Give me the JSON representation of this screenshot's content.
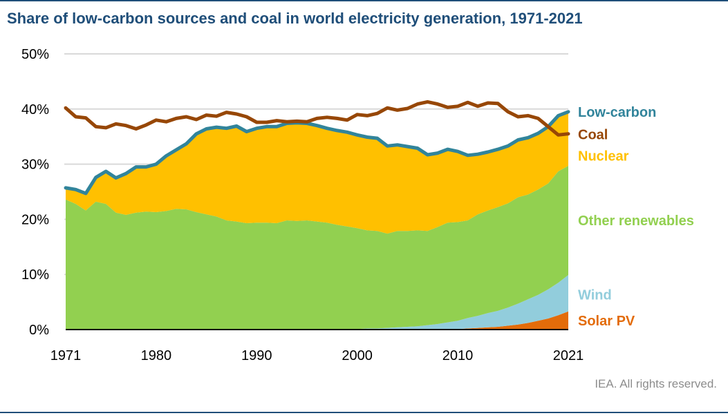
{
  "title": "Share of low-carbon sources and coal in world electricity generation, 1971-2021",
  "credit": "IEA. All rights reserved.",
  "chart_data": {
    "type": "area",
    "title": "Share of low-carbon sources and coal in world electricity generation, 1971-2021",
    "xlabel": "",
    "ylabel": "",
    "xlim": [
      1971,
      2021
    ],
    "ylim": [
      0,
      50
    ],
    "x_ticks": [
      1971,
      1980,
      1990,
      2000,
      2010,
      2021
    ],
    "y_ticks": [
      0,
      10,
      20,
      30,
      40,
      50
    ],
    "y_tick_labels": [
      "0%",
      "10%",
      "20%",
      "30%",
      "40%",
      "50%"
    ],
    "grid": "horizontal",
    "years": [
      1971,
      1972,
      1973,
      1974,
      1975,
      1976,
      1977,
      1978,
      1979,
      1980,
      1981,
      1982,
      1983,
      1984,
      1985,
      1986,
      1987,
      1988,
      1989,
      1990,
      1991,
      1992,
      1993,
      1994,
      1995,
      1996,
      1997,
      1998,
      1999,
      2000,
      2001,
      2002,
      2003,
      2004,
      2005,
      2006,
      2007,
      2008,
      2009,
      2010,
      2011,
      2012,
      2013,
      2014,
      2015,
      2016,
      2017,
      2018,
      2019,
      2020,
      2021
    ],
    "series": [
      {
        "name": "Solar PV",
        "kind": "stacked-area",
        "color": "#e36c0a",
        "values": [
          0,
          0,
          0,
          0,
          0,
          0,
          0,
          0,
          0,
          0,
          0,
          0,
          0,
          0,
          0,
          0,
          0,
          0,
          0,
          0,
          0,
          0,
          0,
          0,
          0,
          0,
          0,
          0,
          0,
          0,
          0,
          0,
          0,
          0,
          0,
          0,
          0,
          0,
          0,
          0.1,
          0.2,
          0.3,
          0.4,
          0.5,
          0.7,
          0.9,
          1.2,
          1.6,
          2.0,
          2.6,
          3.3
        ]
      },
      {
        "name": "Wind",
        "kind": "stacked-area",
        "color": "#92cddc",
        "values": [
          0,
          0,
          0,
          0,
          0,
          0,
          0,
          0,
          0,
          0,
          0,
          0,
          0,
          0,
          0,
          0,
          0,
          0,
          0,
          0,
          0,
          0,
          0,
          0,
          0,
          0,
          0,
          0,
          0.1,
          0.1,
          0.2,
          0.2,
          0.3,
          0.4,
          0.5,
          0.6,
          0.8,
          1.0,
          1.3,
          1.5,
          1.9,
          2.2,
          2.6,
          2.9,
          3.3,
          3.8,
          4.3,
          4.7,
          5.3,
          5.9,
          6.6
        ]
      },
      {
        "name": "Other renewables",
        "kind": "stacked-area",
        "color": "#92d050",
        "values": [
          23.6,
          22.8,
          21.6,
          23.2,
          22.8,
          21.2,
          20.8,
          21.2,
          21.4,
          21.3,
          21.5,
          21.9,
          21.8,
          21.3,
          20.9,
          20.5,
          19.8,
          19.6,
          19.3,
          19.4,
          19.4,
          19.3,
          19.8,
          19.7,
          19.8,
          19.6,
          19.4,
          19.0,
          18.6,
          18.3,
          17.8,
          17.7,
          17.1,
          17.5,
          17.4,
          17.4,
          17.1,
          17.6,
          18.1,
          17.9,
          17.7,
          18.4,
          18.6,
          18.8,
          18.9,
          19.3,
          19.0,
          19.1,
          19.2,
          20.2,
          19.8
        ]
      },
      {
        "name": "Nuclear",
        "kind": "stacked-area",
        "color": "#ffc000",
        "values": [
          2.1,
          2.6,
          3.1,
          4.4,
          5.9,
          6.3,
          7.5,
          8.3,
          8.1,
          8.7,
          10.0,
          10.7,
          11.9,
          14.2,
          15.5,
          16.2,
          16.7,
          17.3,
          16.6,
          17.1,
          17.4,
          17.5,
          17.6,
          17.8,
          17.6,
          17.4,
          17.1,
          17.1,
          17.1,
          16.9,
          16.9,
          16.8,
          15.9,
          15.6,
          15.3,
          14.9,
          13.8,
          13.4,
          13.3,
          12.8,
          11.8,
          10.9,
          10.6,
          10.5,
          10.4,
          10.4,
          10.3,
          10.2,
          10.3,
          10.1,
          9.8
        ]
      },
      {
        "name": "Low-carbon",
        "kind": "line",
        "color": "#31849b",
        "values": [
          25.7,
          25.4,
          24.7,
          27.6,
          28.7,
          27.5,
          28.3,
          29.5,
          29.5,
          30.0,
          31.5,
          32.6,
          33.7,
          35.5,
          36.4,
          36.7,
          36.5,
          36.9,
          35.9,
          36.5,
          36.8,
          36.8,
          37.4,
          37.5,
          37.4,
          37.0,
          36.5,
          36.1,
          35.8,
          35.3,
          34.9,
          34.7,
          33.3,
          33.5,
          33.2,
          32.9,
          31.7,
          32.0,
          32.7,
          32.3,
          31.6,
          31.8,
          32.2,
          32.7,
          33.3,
          34.4,
          34.8,
          35.6,
          36.8,
          38.8,
          39.5
        ]
      },
      {
        "name": "Coal",
        "kind": "line",
        "color": "#974706",
        "values": [
          40.2,
          38.6,
          38.4,
          36.8,
          36.6,
          37.3,
          37.0,
          36.4,
          37.1,
          38.0,
          37.7,
          38.3,
          38.6,
          38.1,
          38.9,
          38.7,
          39.4,
          39.1,
          38.6,
          37.6,
          37.6,
          37.9,
          37.7,
          37.8,
          37.7,
          38.3,
          38.5,
          38.3,
          38.0,
          39.0,
          38.8,
          39.2,
          40.2,
          39.8,
          40.1,
          40.9,
          41.3,
          40.9,
          40.3,
          40.5,
          41.2,
          40.5,
          41.1,
          41.0,
          39.5,
          38.6,
          38.8,
          38.3,
          36.8,
          35.3,
          35.5
        ]
      }
    ],
    "series_labels": [
      {
        "text": "Low-carbon",
        "color": "#31849b",
        "at": 39.5
      },
      {
        "text": "Coal",
        "color": "#974706",
        "at": 35.4
      },
      {
        "text": "Nuclear",
        "color": "#ffc000",
        "at": 31.5
      },
      {
        "text": "Other renewables",
        "color": "#92d050",
        "at": 19.8
      },
      {
        "text": "Wind",
        "color": "#92cddc",
        "at": 6.3
      },
      {
        "text": "Solar PV",
        "color": "#e36c0a",
        "at": 1.6
      }
    ]
  }
}
